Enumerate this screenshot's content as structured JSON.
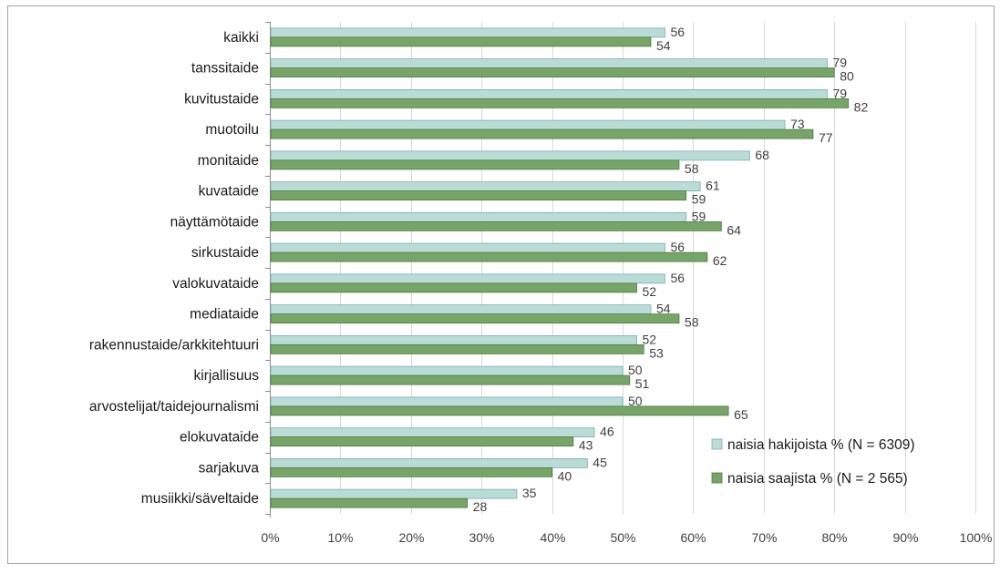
{
  "chart_data": {
    "type": "bar",
    "orientation": "horizontal",
    "categories": [
      "kaikki",
      "tanssitaide",
      "kuvitustaide",
      "muotoilu",
      "monitaide",
      "kuvataide",
      "näyttämötaide",
      "sirkustaide",
      "valokuvataide",
      "mediataide",
      "rakennustaide/arkkitehtuuri",
      "kirjallisuus",
      "arvostelijat/taidejournalismi",
      "elokuvataide",
      "sarjakuva",
      "musiikki/säveltaide"
    ],
    "series": [
      {
        "name": "naisia hakijoista % (N = 6309)",
        "color": "#b9dcd6",
        "values": [
          56,
          79,
          79,
          73,
          68,
          61,
          59,
          56,
          56,
          54,
          52,
          50,
          50,
          46,
          45,
          35
        ]
      },
      {
        "name": "naisia saajista % (N = 2 565)",
        "color": "#77a467",
        "values": [
          54,
          80,
          82,
          77,
          58,
          59,
          64,
          62,
          52,
          58,
          53,
          51,
          65,
          43,
          40,
          28
        ]
      }
    ],
    "xlim": [
      0,
      100
    ],
    "x_ticks": [
      "0%",
      "10%",
      "20%",
      "30%",
      "40%",
      "50%",
      "60%",
      "70%",
      "80%",
      "90%",
      "100%"
    ],
    "grid": "vertical",
    "legend_position": "bottom-right",
    "title": "",
    "xlabel": "",
    "ylabel": ""
  }
}
